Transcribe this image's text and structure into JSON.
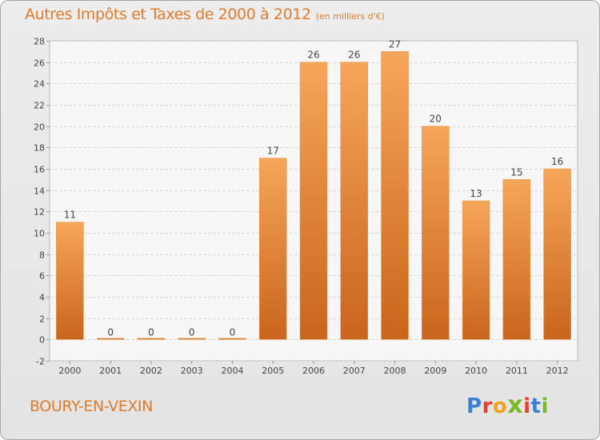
{
  "title": "Autres Impôts et Taxes de 2000 à 2012",
  "subtitle": "(en milliers d'€)",
  "commune": "BOURY-EN-VEXIN",
  "brand": {
    "letters": [
      "P",
      "r",
      "o",
      "x",
      "i",
      "t",
      "i"
    ],
    "colors": [
      "#3b7fd6",
      "#e8402c",
      "#f2a31b",
      "#7ab929",
      "#e8402c",
      "#3b7fd6",
      "#7ab929"
    ]
  },
  "chart_data": {
    "type": "bar",
    "categories": [
      "2000",
      "2001",
      "2002",
      "2003",
      "2004",
      "2005",
      "2006",
      "2007",
      "2008",
      "2009",
      "2010",
      "2011",
      "2012"
    ],
    "values": [
      11,
      0,
      0,
      0,
      0,
      17,
      26,
      26,
      27,
      20,
      13,
      15,
      16
    ],
    "data_labels": [
      "11",
      "0",
      "0",
      "0",
      "0",
      "17",
      "26",
      "26",
      "27",
      "20",
      "13",
      "15",
      "16"
    ],
    "ylim": [
      -2,
      28
    ],
    "yticks": [
      -2,
      0,
      2,
      4,
      6,
      8,
      10,
      12,
      14,
      16,
      18,
      20,
      22,
      24,
      26,
      28
    ],
    "grid": true,
    "bar_color_top": "#f6a65a",
    "bar_color_bottom": "#c9651c"
  }
}
